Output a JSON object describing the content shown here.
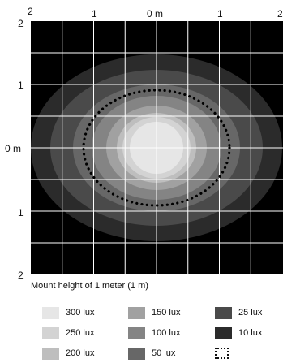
{
  "axes": {
    "top_ticks": [
      "2",
      "1",
      "0 m",
      "1",
      "2"
    ],
    "left_ticks": [
      "2",
      "1",
      "0 m",
      "1",
      "2"
    ]
  },
  "illuminance": {
    "mount_height_m": 1,
    "levels_lux": [
      10,
      25,
      50,
      100,
      150,
      200,
      250,
      300
    ],
    "level_colors": [
      "#2b2b2b",
      "#4a4a4a",
      "#676767",
      "#848484",
      "#a1a1a1",
      "#bebebe",
      "#d3d3d3",
      "#e6e6e6"
    ],
    "background_color": "#000000",
    "grid_color": "#ffffff",
    "outline_style": "dotted"
  },
  "caption": "Mount height of 1 meter (1 m)",
  "legend": [
    {
      "label": "300 lux",
      "color": "#e6e6e6"
    },
    {
      "label": "250 lux",
      "color": "#d3d3d3"
    },
    {
      "label": "200 lux",
      "color": "#bebebe"
    },
    {
      "label": "150 lux",
      "color": "#a1a1a1"
    },
    {
      "label": "100 lux",
      "color": "#848484"
    },
    {
      "label": "50 lux",
      "color": "#676767"
    },
    {
      "label": "25 lux",
      "color": "#4a4a4a"
    },
    {
      "label": "10 lux",
      "color": "#2b2b2b"
    },
    {
      "label": "",
      "icon": "dotted-outline-icon"
    }
  ]
}
